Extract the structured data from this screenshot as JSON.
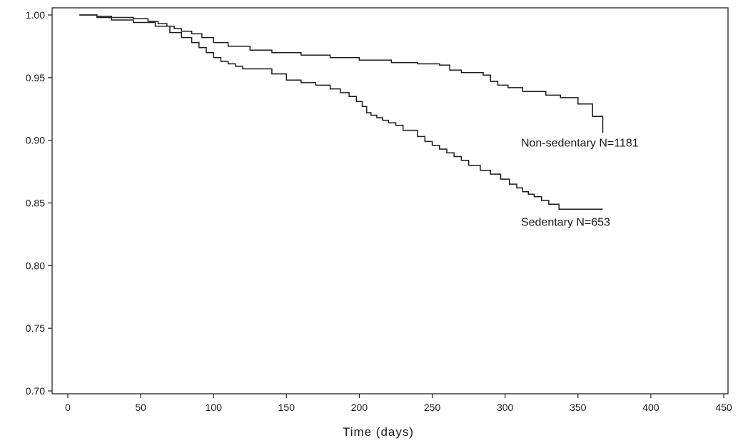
{
  "chart_data": {
    "type": "line",
    "title": "",
    "xlabel": "Time (days)",
    "ylabel": "",
    "xlim": [
      0,
      450
    ],
    "ylim": [
      0.7,
      1.0
    ],
    "x_ticks": [
      0,
      50,
      100,
      150,
      200,
      250,
      300,
      350,
      400,
      450
    ],
    "y_ticks": [
      0.7,
      0.75,
      0.8,
      0.85,
      0.9,
      0.95,
      1.0
    ],
    "y_tick_labels": [
      "0.70",
      "0.75",
      "0.80",
      "0.85",
      "0.90",
      "0.95",
      "1.00"
    ],
    "grid": false,
    "step": true,
    "series": [
      {
        "name": "Non-sedentary N=1181",
        "color": "#1a1a1a",
        "x": [
          8,
          20,
          30,
          45,
          55,
          62,
          68,
          73,
          78,
          85,
          92,
          100,
          110,
          125,
          140,
          160,
          180,
          200,
          222,
          240,
          255,
          262,
          270,
          285,
          290,
          295,
          302,
          312,
          328,
          338,
          350,
          360,
          367
        ],
        "y": [
          1.0,
          0.999,
          0.998,
          0.997,
          0.995,
          0.993,
          0.991,
          0.989,
          0.987,
          0.985,
          0.982,
          0.978,
          0.975,
          0.972,
          0.97,
          0.968,
          0.966,
          0.964,
          0.962,
          0.961,
          0.96,
          0.956,
          0.954,
          0.952,
          0.947,
          0.944,
          0.942,
          0.939,
          0.936,
          0.934,
          0.929,
          0.919,
          0.906
        ]
      },
      {
        "name": "Sedentary N=653",
        "color": "#1a1a1a",
        "x": [
          8,
          20,
          30,
          45,
          60,
          70,
          78,
          85,
          90,
          95,
          100,
          105,
          110,
          115,
          120,
          140,
          150,
          160,
          170,
          180,
          187,
          193,
          198,
          202,
          205,
          208,
          212,
          216,
          220,
          225,
          230,
          240,
          245,
          250,
          255,
          260,
          265,
          270,
          275,
          283,
          290,
          297,
          303,
          308,
          312,
          316,
          320,
          325,
          330,
          337,
          350,
          367
        ],
        "y": [
          1.0,
          0.998,
          0.996,
          0.994,
          0.991,
          0.986,
          0.982,
          0.978,
          0.974,
          0.97,
          0.966,
          0.963,
          0.961,
          0.959,
          0.957,
          0.953,
          0.948,
          0.946,
          0.944,
          0.941,
          0.938,
          0.935,
          0.931,
          0.927,
          0.922,
          0.92,
          0.918,
          0.916,
          0.914,
          0.912,
          0.908,
          0.903,
          0.899,
          0.896,
          0.893,
          0.89,
          0.887,
          0.884,
          0.88,
          0.876,
          0.873,
          0.869,
          0.865,
          0.862,
          0.859,
          0.857,
          0.855,
          0.852,
          0.849,
          0.845,
          0.845,
          0.845
        ]
      }
    ],
    "annotations": [
      {
        "text": "Non-sedentary N=1181",
        "x": 307,
        "y": 0.904
      },
      {
        "text": "Sedentary N=653",
        "x": 307,
        "y": 0.841
      }
    ]
  }
}
